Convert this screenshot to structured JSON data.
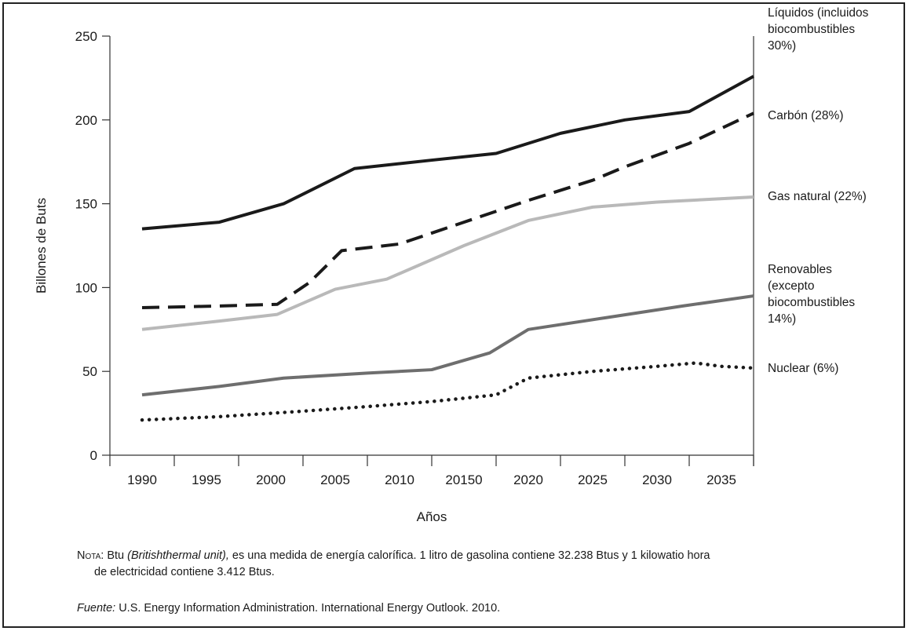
{
  "chart_data": {
    "type": "line",
    "xlabel": "Años",
    "ylabel": "Billones de Buts",
    "ylim": [
      0,
      250
    ],
    "yticks": [
      0,
      50,
      100,
      150,
      200,
      250
    ],
    "categories": [
      "1990",
      "1995",
      "2000",
      "2005",
      "2010",
      "20150",
      "2020",
      "2025",
      "2030",
      "2035"
    ],
    "grid": false,
    "legend": "labels at right end of each line",
    "series": [
      {
        "name": "Líquidos (incluidos biocombustibles 30%)",
        "label_lines": [
          "Líquidos (incluidos",
          "biocombustibles",
          "30%)"
        ],
        "style": "solid",
        "color": "#1a1a1a",
        "points": [
          [
            0,
            135
          ],
          [
            1.2,
            139
          ],
          [
            2.2,
            150
          ],
          [
            3.3,
            171
          ],
          [
            4.5,
            176
          ],
          [
            5.5,
            180
          ],
          [
            6.5,
            192
          ],
          [
            7.5,
            200
          ],
          [
            8.5,
            205
          ],
          [
            9.5,
            226
          ]
        ]
      },
      {
        "name": "Carbón (28%)",
        "label_lines": [
          "Carbón (28%)"
        ],
        "style": "dashed",
        "color": "#1a1a1a",
        "points": [
          [
            0,
            88
          ],
          [
            1.2,
            89
          ],
          [
            2.1,
            90
          ],
          [
            2.6,
            103
          ],
          [
            3.1,
            122
          ],
          [
            4.0,
            126
          ],
          [
            5.0,
            139
          ],
          [
            6.0,
            152
          ],
          [
            7.0,
            164
          ],
          [
            7.5,
            172
          ],
          [
            8.5,
            186
          ],
          [
            9.5,
            204
          ]
        ]
      },
      {
        "name": "Gas natural (22%)",
        "label_lines": [
          "Gas natural (22%)"
        ],
        "style": "solid",
        "color": "#b9b9b9",
        "points": [
          [
            0,
            75
          ],
          [
            1.2,
            80
          ],
          [
            2.1,
            84
          ],
          [
            3.0,
            99
          ],
          [
            3.8,
            105
          ],
          [
            5.0,
            125
          ],
          [
            6.0,
            140
          ],
          [
            7.0,
            148
          ],
          [
            8.0,
            151
          ],
          [
            9.5,
            154
          ]
        ]
      },
      {
        "name": "Renovables (excepto biocombustibles 14%)",
        "label_lines": [
          "Renovables",
          "(excepto",
          "biocombustibles",
          "14%)"
        ],
        "style": "solid",
        "color": "#6e6e6e",
        "points": [
          [
            0,
            36
          ],
          [
            1.2,
            41
          ],
          [
            2.2,
            46
          ],
          [
            3.5,
            49
          ],
          [
            4.5,
            51
          ],
          [
            5.4,
            61
          ],
          [
            6.0,
            75
          ],
          [
            7.2,
            82
          ],
          [
            8.4,
            89
          ],
          [
            9.5,
            95
          ]
        ]
      },
      {
        "name": "Nuclear (6%)",
        "label_lines": [
          "Nuclear (6%)"
        ],
        "style": "dotted",
        "color": "#1a1a1a",
        "points": [
          [
            0,
            21
          ],
          [
            1.2,
            23
          ],
          [
            2.4,
            26
          ],
          [
            3.5,
            29
          ],
          [
            4.5,
            32
          ],
          [
            5.5,
            36
          ],
          [
            6.0,
            46
          ],
          [
            7.0,
            50
          ],
          [
            8.0,
            53
          ],
          [
            8.6,
            55
          ],
          [
            9.0,
            53
          ],
          [
            9.5,
            52
          ]
        ]
      }
    ]
  },
  "note": {
    "prefix": "Nota",
    "sep": ": Btu ",
    "italic": "(Britishthermal unit),",
    "text1": " es una medida de energía calorífica. 1 litro de gasolina contiene 32.238 Btus y 1 kilowatio hora",
    "text2": "de electricidad contiene 3.412 Btus."
  },
  "source": {
    "label": "Fuente:",
    "text": " U.S. Energy Information Administration. International Energy Outlook. 2010."
  }
}
